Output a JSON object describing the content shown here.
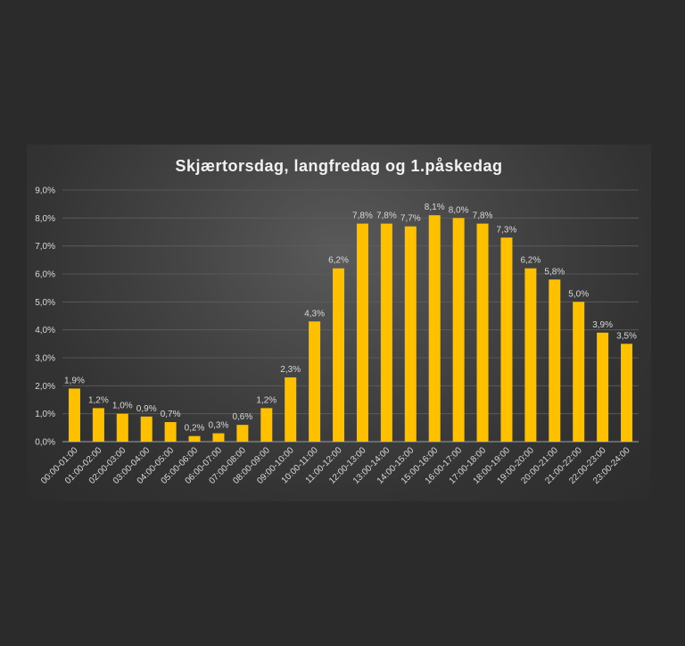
{
  "chart_data": {
    "type": "bar",
    "title": "Skjærtorsdag, langfredag og 1.påskedag",
    "xlabel": "",
    "ylabel": "",
    "categories": [
      "00:00-01:00",
      "01:00-02:00",
      "02:00-03:00",
      "03:00-04:00",
      "04:00-05:00",
      "05:00-06:00",
      "06:00-07:00",
      "07:00-08:00",
      "08:00-09:00",
      "09:00-10:00",
      "10:00-11:00",
      "11:00-12:00",
      "12:00-13:00",
      "13:00-14:00",
      "14:00-15:00",
      "15:00-16:00",
      "16:00-17:00",
      "17:00-18:00",
      "18:00-19:00",
      "19:00-20:00",
      "20:00-21:00",
      "21:00-22:00",
      "22:00-23:00",
      "23:00-24:00"
    ],
    "values": [
      1.9,
      1.2,
      1.0,
      0.9,
      0.7,
      0.2,
      0.3,
      0.6,
      1.2,
      2.3,
      4.3,
      6.2,
      7.8,
      7.8,
      7.7,
      8.1,
      8.0,
      7.8,
      7.3,
      6.2,
      5.8,
      5.0,
      3.9,
      3.5
    ],
    "value_labels": [
      "1,9%",
      "1,2%",
      "1,0%",
      "0,9%",
      "0,7%",
      "0,2%",
      "0,3%",
      "0,6%",
      "1,2%",
      "2,3%",
      "4,3%",
      "6,2%",
      "7,8%",
      "7,8%",
      "7,7%",
      "8,1%",
      "8,0%",
      "7,8%",
      "7,3%",
      "6,2%",
      "5,8%",
      "5,0%",
      "3,9%",
      "3,5%"
    ],
    "y_ticks": [
      0,
      1,
      2,
      3,
      4,
      5,
      6,
      7,
      8,
      9
    ],
    "y_tick_labels": [
      "0,0%",
      "1,0%",
      "2,0%",
      "3,0%",
      "4,0%",
      "5,0%",
      "6,0%",
      "7,0%",
      "8,0%",
      "9,0%"
    ],
    "ylim": [
      0,
      9
    ],
    "grid": true,
    "legend": "none",
    "bar_color": "#ffc000",
    "text_color": "#d9d9d9",
    "gridline_color": "#5e5e5e",
    "page_background": "#2b2b2b"
  }
}
